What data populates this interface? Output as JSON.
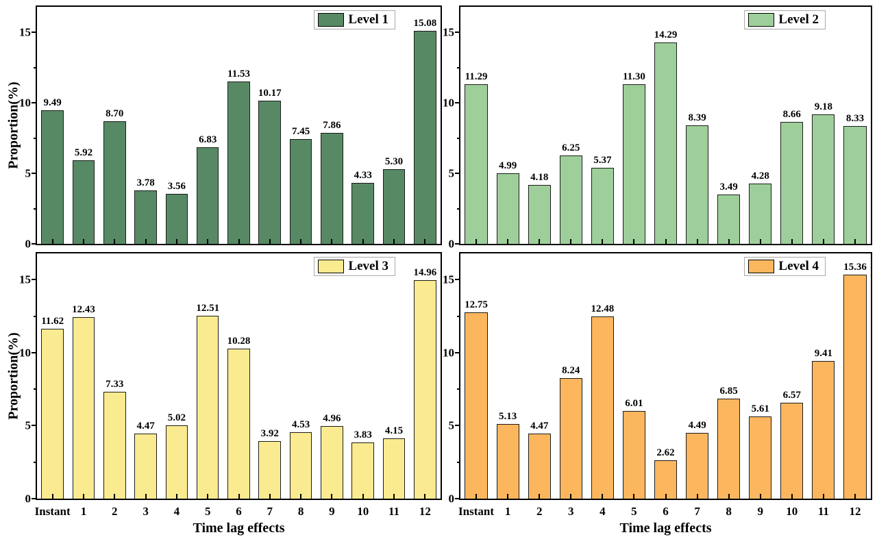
{
  "figure": {
    "background": "#ffffff",
    "shared_xlabel": "Time lag effects",
    "shared_ylabel": "Proportion(%)",
    "x_categories": [
      "Instant",
      "1",
      "2",
      "3",
      "4",
      "5",
      "6",
      "7",
      "8",
      "9",
      "10",
      "11",
      "12"
    ]
  },
  "chart_data": [
    {
      "type": "bar",
      "legend": "Level 1",
      "color": "#578a64",
      "edge_color": "#1a1a1a",
      "categories": [
        "Instant",
        "1",
        "2",
        "3",
        "4",
        "5",
        "6",
        "7",
        "8",
        "9",
        "10",
        "11",
        "12"
      ],
      "values": [
        9.49,
        5.92,
        8.7,
        3.78,
        3.56,
        6.83,
        11.53,
        10.17,
        7.45,
        7.86,
        4.33,
        5.3,
        15.08
      ],
      "title": "",
      "xlabel": "",
      "ylabel": "Proportion(%)",
      "ylim": [
        0,
        16.8
      ],
      "yticks": [
        0,
        5,
        10,
        15
      ],
      "yticks_minor": [
        2.5,
        7.5,
        12.5
      ],
      "grid": false,
      "bar_labels": true,
      "legend_position": "upper right"
    },
    {
      "type": "bar",
      "legend": "Level 2",
      "color": "#9ecf9a",
      "edge_color": "#1a1a1a",
      "categories": [
        "Instant",
        "1",
        "2",
        "3",
        "4",
        "5",
        "6",
        "7",
        "8",
        "9",
        "10",
        "11",
        "12"
      ],
      "values": [
        11.29,
        4.99,
        4.18,
        6.25,
        5.37,
        11.3,
        14.29,
        8.39,
        3.49,
        4.28,
        8.66,
        9.18,
        8.33
      ],
      "title": "",
      "xlabel": "",
      "ylabel": "",
      "ylim": [
        0,
        16.8
      ],
      "yticks": [
        0,
        5,
        10,
        15
      ],
      "yticks_minor": [
        2.5,
        7.5,
        12.5
      ],
      "grid": false,
      "bar_labels": true,
      "legend_position": "upper right"
    },
    {
      "type": "bar",
      "legend": "Level 3",
      "color": "#fbeb90",
      "edge_color": "#1a1a1a",
      "categories": [
        "Instant",
        "1",
        "2",
        "3",
        "4",
        "5",
        "6",
        "7",
        "8",
        "9",
        "10",
        "11",
        "12"
      ],
      "values": [
        11.62,
        12.43,
        7.33,
        4.47,
        5.02,
        12.51,
        10.28,
        3.92,
        4.53,
        4.96,
        3.83,
        4.15,
        14.96
      ],
      "title": "",
      "xlabel": "Time lag effects",
      "ylabel": "Proportion(%)",
      "ylim": [
        0,
        16.8
      ],
      "yticks": [
        0,
        5,
        10,
        15
      ],
      "yticks_minor": [
        2.5,
        7.5,
        12.5
      ],
      "grid": false,
      "bar_labels": true,
      "legend_position": "upper right"
    },
    {
      "type": "bar",
      "legend": "Level 4",
      "color": "#fcb75e",
      "edge_color": "#1a1a1a",
      "categories": [
        "Instant",
        "1",
        "2",
        "3",
        "4",
        "5",
        "6",
        "7",
        "8",
        "9",
        "10",
        "11",
        "12"
      ],
      "values": [
        12.75,
        5.13,
        4.47,
        8.24,
        12.48,
        6.01,
        2.62,
        4.49,
        6.85,
        5.61,
        6.57,
        9.41,
        15.36
      ],
      "title": "",
      "xlabel": "Time lag effects",
      "ylabel": "",
      "ylim": [
        0,
        16.8
      ],
      "yticks": [
        0,
        5,
        10,
        15
      ],
      "yticks_minor": [
        2.5,
        7.5,
        12.5
      ],
      "grid": false,
      "bar_labels": true,
      "legend_position": "upper right"
    }
  ]
}
